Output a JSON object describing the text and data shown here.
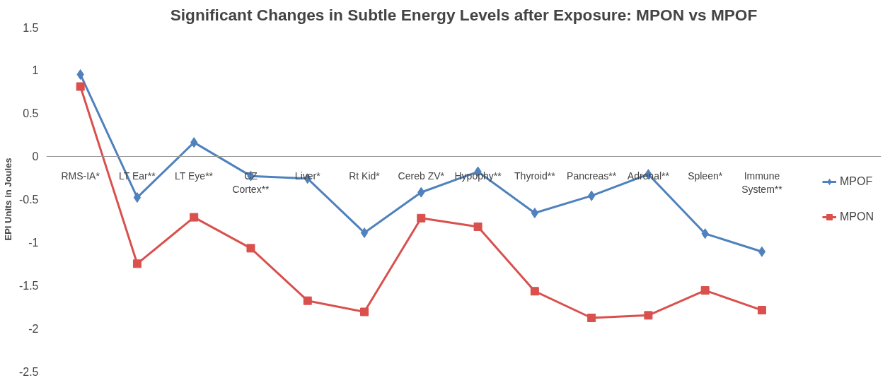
{
  "chart_data": {
    "type": "line",
    "title": "Significant Changes in Subtle Energy Levels after Exposure: MPON vs MPOF",
    "ylabel": "EPI Units in Joules",
    "categories": [
      "RMS-IA*",
      "LT Ear**",
      "LT Eye**",
      "CZ\nCortex**",
      "Liver*",
      "Rt Kid*",
      "Cereb ZV*",
      "Hypophy**",
      "Thyroid**",
      "Pancreas**",
      "Adrenal**",
      "Spleen*",
      "Immune\nSystem**"
    ],
    "series": [
      {
        "name": "MPOF",
        "color": "#4f81bd",
        "marker": "diamond",
        "values": [
          0.95,
          -0.48,
          0.16,
          -0.23,
          -0.26,
          -0.89,
          -0.42,
          -0.18,
          -0.66,
          -0.46,
          -0.21,
          -0.9,
          -1.11
        ]
      },
      {
        "name": "MPON",
        "color": "#d9504d",
        "marker": "square",
        "values": [
          0.81,
          -1.25,
          -0.71,
          -1.07,
          -1.68,
          -1.81,
          -0.72,
          -0.82,
          -1.57,
          -1.88,
          -1.85,
          -1.56,
          -1.79
        ]
      }
    ],
    "ylim": [
      -2.5,
      1.5
    ],
    "yticks": [
      -2.5,
      -2,
      -1.5,
      -1,
      -0.5,
      0,
      0.5,
      1,
      1.5
    ],
    "grid": false,
    "legend": "right",
    "line_style": "solid"
  }
}
